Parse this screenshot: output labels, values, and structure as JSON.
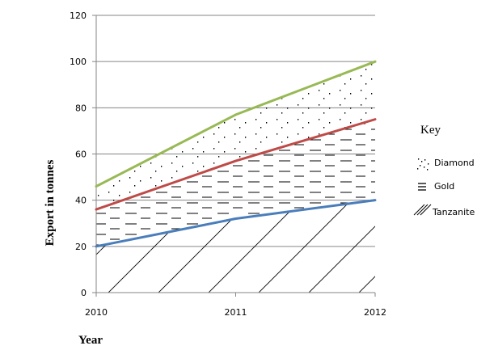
{
  "chart_data": {
    "type": "area",
    "x": [
      "2010",
      "2011",
      "2012"
    ],
    "series": [
      {
        "name": "Tanzanite",
        "cumulative": [
          20,
          32,
          40
        ],
        "color": "#4a7ebb",
        "pattern": "diagonal-hatch"
      },
      {
        "name": "Gold",
        "cumulative": [
          36,
          57,
          75
        ],
        "color": "#be4b48",
        "pattern": "horizontal-dashes"
      },
      {
        "name": "Diamond",
        "cumulative": [
          46,
          77,
          100
        ],
        "color": "#98b954",
        "pattern": "dots"
      }
    ],
    "xlabel": "Year",
    "ylabel": "Export in tonnes",
    "ylim": [
      0,
      120
    ],
    "yticks": [
      "0",
      "20",
      "40",
      "60",
      "80",
      "100",
      "120"
    ],
    "grid": true,
    "legend": {
      "title": "Key",
      "position": "right",
      "entries": [
        "Diamond",
        "Gold",
        "Tanzanite"
      ]
    }
  }
}
